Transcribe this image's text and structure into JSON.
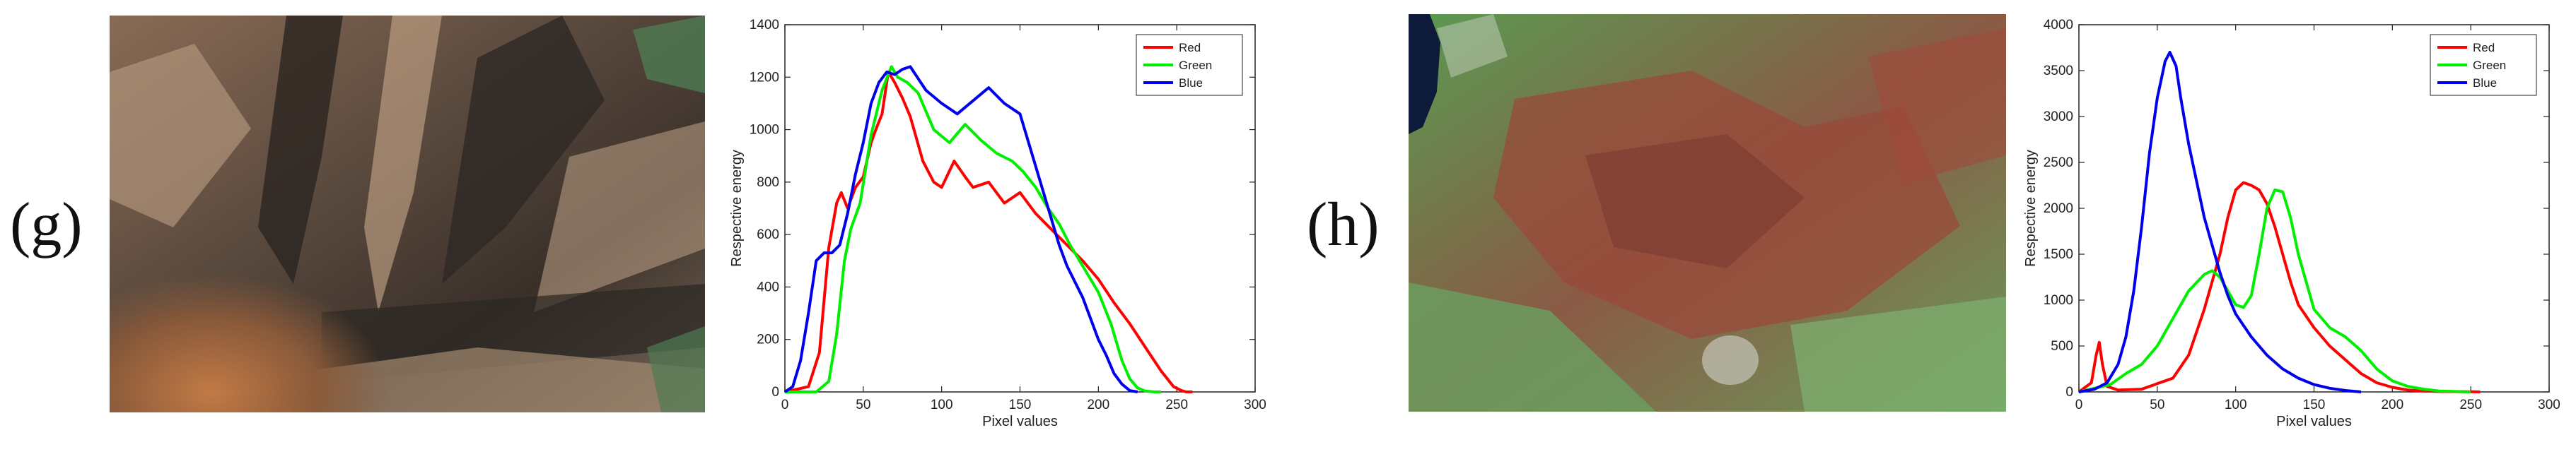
{
  "panels": [
    {
      "label": "(g)"
    },
    {
      "label": "(h)"
    }
  ],
  "chart_data": [
    {
      "type": "line",
      "title": "",
      "xlabel": "Pixel values",
      "ylabel": "Respective energy",
      "xlim": [
        0,
        300
      ],
      "ylim": [
        0,
        1400
      ],
      "xticks": [
        0,
        50,
        100,
        150,
        200,
        250,
        300
      ],
      "yticks": [
        0,
        200,
        400,
        600,
        800,
        1000,
        1200,
        1400
      ],
      "legend_position": "top-right",
      "series": [
        {
          "name": "Red",
          "color": "#ff0000",
          "x": [
            0,
            15,
            22,
            28,
            33,
            36,
            40,
            45,
            50,
            55,
            58,
            62,
            66,
            70,
            75,
            80,
            88,
            95,
            100,
            108,
            115,
            120,
            130,
            140,
            150,
            160,
            170,
            180,
            190,
            200,
            210,
            220,
            230,
            240,
            248,
            253,
            256,
            260
          ],
          "values": [
            0,
            20,
            150,
            550,
            720,
            760,
            700,
            780,
            820,
            950,
            1000,
            1060,
            1220,
            1180,
            1120,
            1050,
            880,
            800,
            780,
            880,
            820,
            780,
            800,
            720,
            760,
            680,
            620,
            560,
            500,
            430,
            340,
            260,
            170,
            80,
            20,
            5,
            0,
            0
          ]
        },
        {
          "name": "Green",
          "color": "#00ee00",
          "x": [
            0,
            20,
            28,
            33,
            38,
            42,
            48,
            55,
            62,
            68,
            72,
            78,
            85,
            95,
            105,
            115,
            125,
            135,
            145,
            152,
            160,
            168,
            175,
            182,
            190,
            200,
            208,
            215,
            220,
            225,
            230,
            236,
            240
          ],
          "values": [
            0,
            0,
            40,
            220,
            500,
            620,
            720,
            980,
            1150,
            1240,
            1200,
            1180,
            1140,
            1000,
            950,
            1020,
            960,
            910,
            880,
            840,
            780,
            700,
            640,
            560,
            480,
            380,
            260,
            120,
            50,
            15,
            3,
            0,
            0
          ]
        },
        {
          "name": "Blue",
          "color": "#0000ee",
          "x": [
            0,
            5,
            10,
            15,
            20,
            25,
            30,
            35,
            40,
            45,
            50,
            55,
            60,
            65,
            70,
            75,
            80,
            90,
            100,
            110,
            120,
            130,
            135,
            140,
            150,
            160,
            168,
            175,
            180,
            190,
            200,
            205,
            210,
            215,
            220,
            225
          ],
          "values": [
            0,
            20,
            120,
            300,
            500,
            530,
            530,
            560,
            680,
            830,
            950,
            1100,
            1180,
            1220,
            1210,
            1230,
            1240,
            1150,
            1100,
            1060,
            1110,
            1160,
            1130,
            1100,
            1060,
            860,
            700,
            560,
            480,
            360,
            200,
            140,
            70,
            30,
            5,
            0
          ]
        }
      ]
    },
    {
      "type": "line",
      "title": "",
      "xlabel": "Pixel values",
      "ylabel": "Respective energy",
      "xlim": [
        0,
        300
      ],
      "ylim": [
        0,
        4000
      ],
      "xticks": [
        0,
        50,
        100,
        150,
        200,
        250,
        300
      ],
      "yticks": [
        0,
        500,
        1000,
        1500,
        2000,
        2500,
        3000,
        3500,
        4000
      ],
      "legend_position": "top-right",
      "series": [
        {
          "name": "Red",
          "color": "#ff0000",
          "x": [
            0,
            8,
            11,
            13,
            15,
            18,
            25,
            40,
            60,
            70,
            80,
            90,
            95,
            100,
            105,
            110,
            115,
            120,
            125,
            130,
            135,
            140,
            150,
            160,
            170,
            180,
            190,
            200,
            210,
            220,
            230,
            240,
            250,
            256
          ],
          "values": [
            0,
            100,
            400,
            540,
            300,
            60,
            20,
            30,
            150,
            400,
            900,
            1500,
            1900,
            2200,
            2280,
            2250,
            2200,
            2050,
            1800,
            1500,
            1200,
            950,
            700,
            500,
            350,
            200,
            100,
            50,
            20,
            10,
            5,
            3,
            2,
            0
          ]
        },
        {
          "name": "Green",
          "color": "#00ee00",
          "x": [
            0,
            20,
            30,
            40,
            50,
            60,
            70,
            80,
            85,
            90,
            95,
            100,
            105,
            110,
            115,
            120,
            125,
            130,
            135,
            140,
            145,
            150,
            160,
            170,
            180,
            190,
            200,
            210,
            220,
            230,
            240,
            250
          ],
          "values": [
            0,
            80,
            200,
            300,
            500,
            800,
            1100,
            1280,
            1320,
            1250,
            1100,
            950,
            920,
            1050,
            1500,
            2000,
            2200,
            2180,
            1900,
            1500,
            1200,
            900,
            700,
            600,
            450,
            250,
            120,
            60,
            30,
            10,
            5,
            0
          ]
        },
        {
          "name": "Blue",
          "color": "#0000ee",
          "x": [
            0,
            10,
            18,
            25,
            30,
            35,
            40,
            45,
            50,
            55,
            58,
            62,
            65,
            70,
            75,
            80,
            85,
            90,
            95,
            100,
            110,
            120,
            130,
            140,
            150,
            160,
            170,
            180
          ],
          "values": [
            0,
            30,
            100,
            300,
            600,
            1100,
            1800,
            2600,
            3200,
            3600,
            3700,
            3550,
            3200,
            2700,
            2300,
            1900,
            1600,
            1300,
            1050,
            850,
            600,
            400,
            250,
            150,
            80,
            40,
            15,
            0
          ]
        }
      ]
    }
  ]
}
